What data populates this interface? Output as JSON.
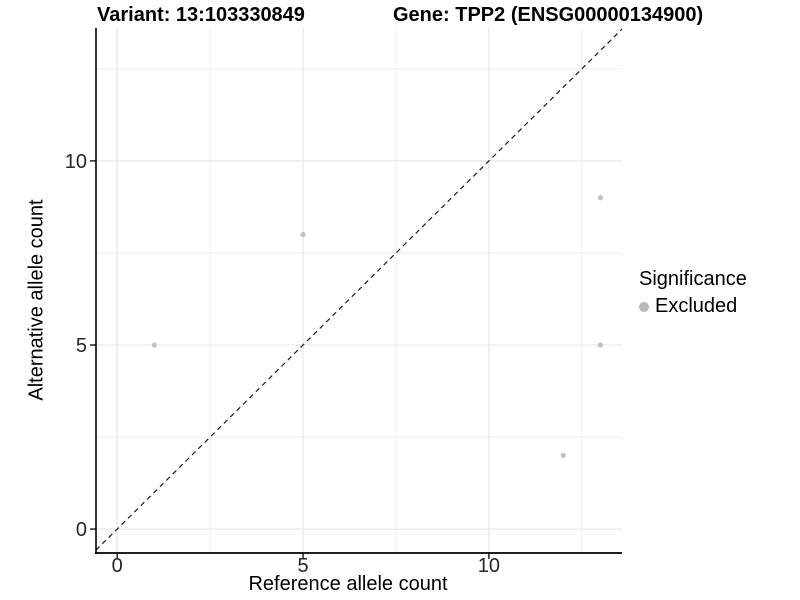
{
  "chart_data": {
    "type": "scatter",
    "titles": {
      "left": "Variant: 13:103330849",
      "right": "Gene: TPP2 (ENSG00000134900)"
    },
    "xlabel": "Reference allele count",
    "ylabel": "Alternative allele count",
    "xlim": [
      -0.57,
      13.58
    ],
    "ylim": [
      -0.65,
      13.61
    ],
    "x_major_ticks": [
      0,
      5,
      10
    ],
    "y_major_ticks": [
      0,
      5,
      10
    ],
    "x_minor_ticks": [
      2.5,
      7.5,
      12.5
    ],
    "y_minor_ticks": [
      2.5,
      7.5,
      12.5
    ],
    "x_tick_labels": [
      "0",
      "5",
      "10"
    ],
    "y_tick_labels": [
      "0",
      "5",
      "10"
    ],
    "series": [
      {
        "name": "Excluded",
        "marker_color": "#c1c1c1",
        "points": [
          [
            1,
            5
          ],
          [
            5,
            8
          ],
          [
            12,
            2
          ],
          [
            13,
            5
          ],
          [
            13,
            9
          ]
        ]
      }
    ],
    "reference_line": {
      "type": "identity",
      "slope": 1,
      "intercept": 0,
      "linestyle": "dashed",
      "color": "#1a1a1a"
    },
    "legend": {
      "title": "Significance",
      "position": "right",
      "entries": [
        {
          "label": "Excluded",
          "marker_color": "#b8b8b8"
        }
      ]
    },
    "grid": {
      "major_color": "#e3e3e3",
      "minor_color": "#efefef"
    },
    "axis_color": "#000000",
    "background": "#ffffff"
  }
}
